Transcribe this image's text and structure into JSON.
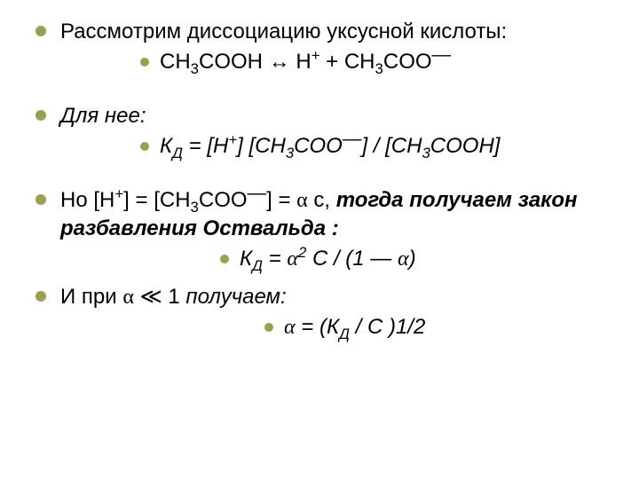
{
  "bullet_color": "#9aa050",
  "text_color": "#000000",
  "block1": {
    "line1": "Рассмотрим диссоциацию уксусной кислоты:",
    "formula_parts": {
      "p1": "CH",
      "p2": "3",
      "p3": "COOH ",
      "arrow": "↔",
      "p4": " H",
      "p5": "+",
      "p6": " + CH",
      "p7": "3",
      "p8": "COO",
      "p9": "—"
    }
  },
  "block2": {
    "line1_italic": "Для нее:",
    "formula_parts": {
      "k": "К",
      "d": "Д",
      "eq": " = [H",
      "plus": "+",
      "m1": "] [CH",
      "s3a": "3",
      "m2": "COO",
      "minus": "—",
      "m3": "] / [CH",
      "s3b": "3",
      "m4": "COOH]"
    }
  },
  "block3": {
    "line_parts": {
      "p1": "Но [H",
      "plus": "+",
      "p2": "]   = [CH",
      "s3": "3",
      "p3": "COO",
      "minus": "—",
      "p4": "] = ",
      "alpha": "α",
      "p5": " c, ",
      "italic_tail": "тогда получаем закон разбавления Оствальда :"
    },
    "formula_parts": {
      "k": "К",
      "d": "Д",
      "eq": " = ",
      "alpha": "α",
      "sq": "2",
      "rest": " C / (1 — ",
      "alpha2": "α",
      "close": ")"
    }
  },
  "block4": {
    "line_parts": {
      "p1": "И при ",
      "alpha": "α",
      "p2": " ",
      "ll": "≪",
      "p3": " 1 ",
      "italic": "получаем:"
    },
    "formula_parts": {
      "alpha": "α",
      "eq": " = (К",
      "d": "Д",
      "rest": " / C )",
      "half": "1/2"
    }
  }
}
